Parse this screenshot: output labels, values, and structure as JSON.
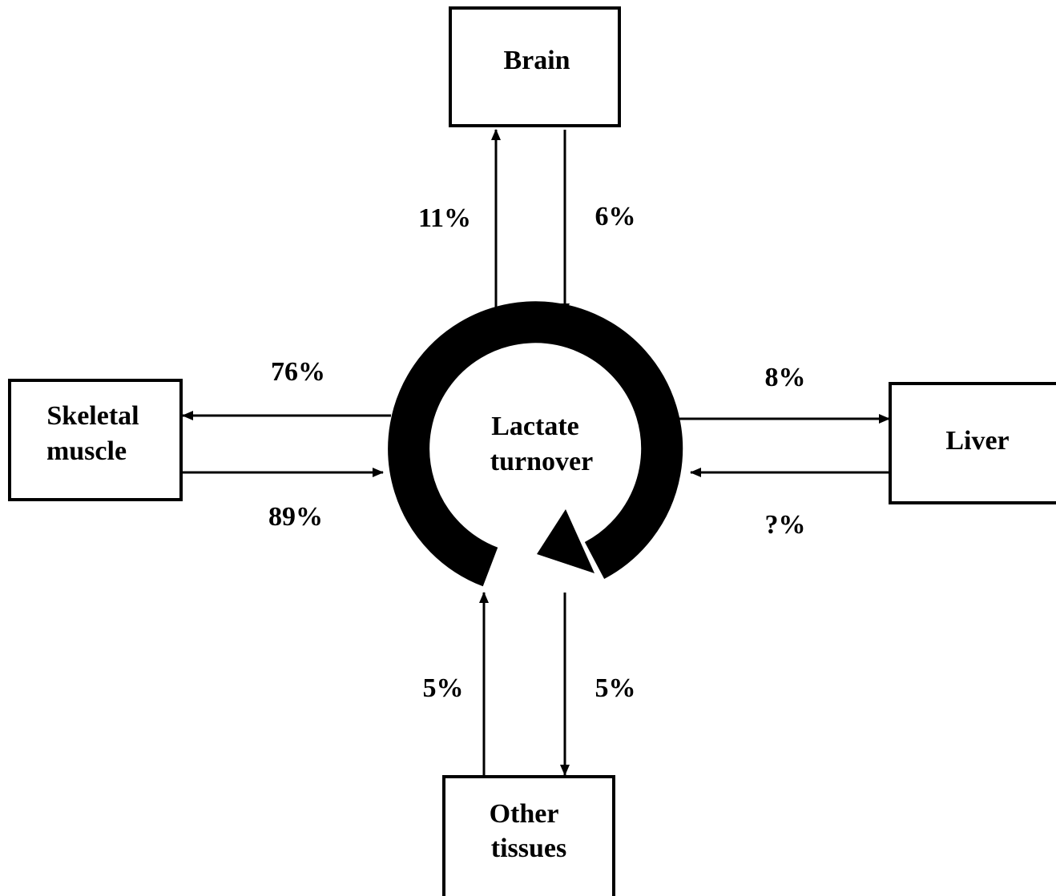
{
  "nodes": [
    {
      "id": "brain",
      "lines": [
        "Brain"
      ]
    },
    {
      "id": "muscle",
      "lines": [
        "Skeletal",
        "muscle"
      ]
    },
    {
      "id": "liver",
      "lines": [
        "Liver"
      ]
    },
    {
      "id": "other",
      "lines": [
        "Other",
        "tissues"
      ]
    },
    {
      "id": "center",
      "lines": [
        "Lactate",
        "turnover"
      ]
    }
  ],
  "edges": [
    {
      "label": "11%"
    },
    {
      "label": "6%"
    },
    {
      "label": "76%"
    },
    {
      "label": "89%"
    },
    {
      "label": "8%"
    },
    {
      "label": "?%"
    },
    {
      "label": "5%"
    },
    {
      "label": "5%"
    }
  ]
}
